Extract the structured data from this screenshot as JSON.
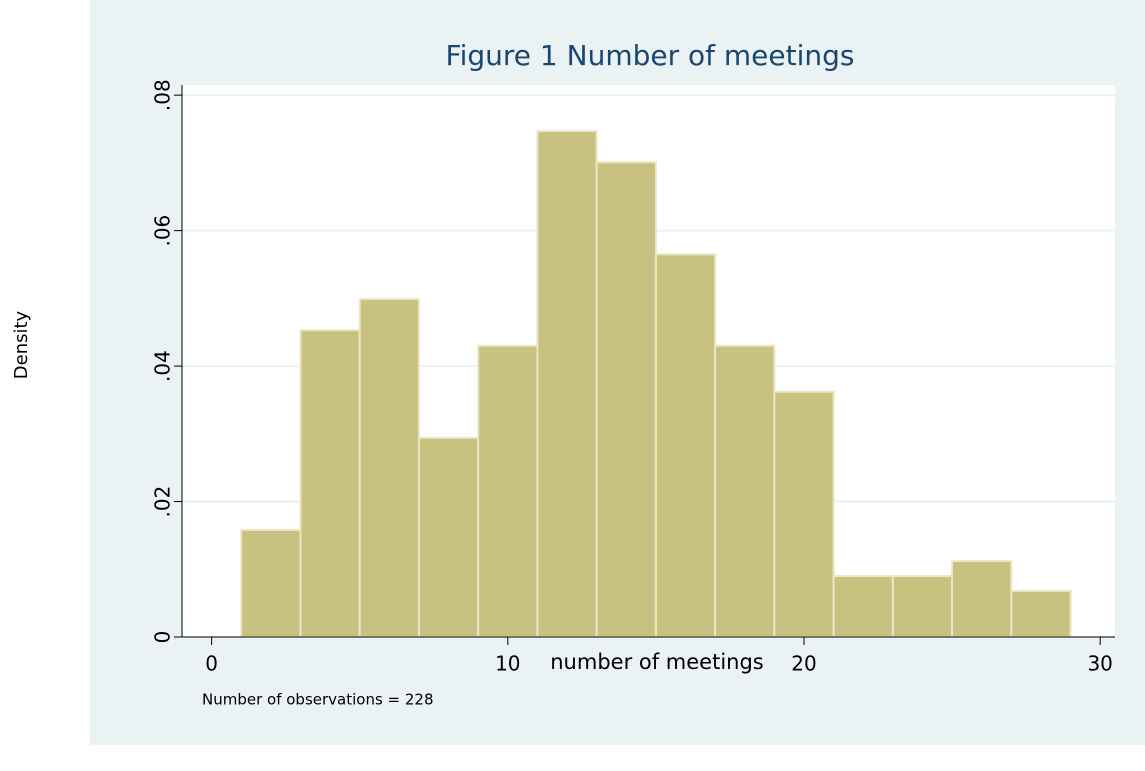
{
  "chart_data": {
    "type": "histogram",
    "title": "Figure 1 Number of meetings",
    "xlabel": "number of meetings",
    "ylabel": "Density",
    "note": "Number of observations = 228",
    "bins": [
      1,
      3,
      5,
      7,
      9,
      11,
      13,
      15,
      17,
      19,
      21,
      23,
      25,
      27,
      29
    ],
    "values": [
      0.0158,
      0.0453,
      0.0499,
      0.0294,
      0.043,
      0.0747,
      0.0701,
      0.0565,
      0.043,
      0.0362,
      0.009,
      0.009,
      0.0112,
      0.0068
    ],
    "color": "#c9c17f",
    "xlim": [
      -1,
      30.5
    ],
    "ylim": [
      0,
      0.0815
    ],
    "xticks": [
      0,
      10,
      20,
      30
    ],
    "yticks": [
      0,
      {
        "value": 0.02,
        "label": ".02"
      },
      {
        "value": 0.04,
        "label": ".04"
      },
      {
        "value": 0.06,
        "label": ".06"
      },
      {
        "value": 0.08,
        "label": ".08"
      }
    ],
    "grid": true
  }
}
